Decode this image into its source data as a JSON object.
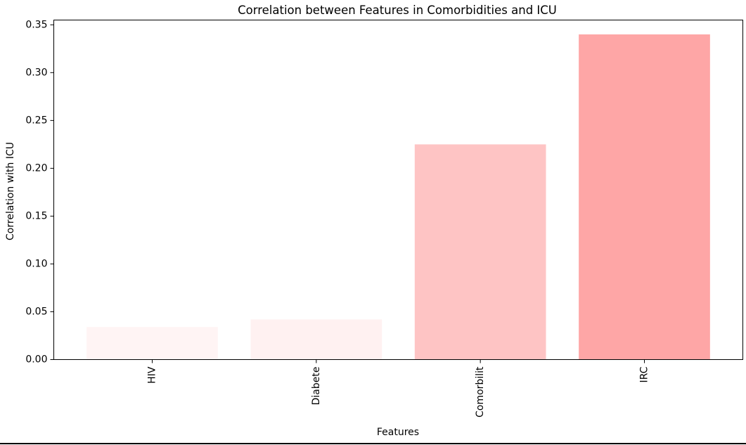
{
  "chart_data": {
    "type": "bar",
    "title": "Correlation between Features in Comorbidities and ICU",
    "xlabel": "Features",
    "ylabel": "Correlation with ICU",
    "categories": [
      "HIV",
      "Diabete",
      "Comorbilit",
      "IRC"
    ],
    "values": [
      0.034,
      0.042,
      0.225,
      0.34
    ],
    "colors": [
      "#fff4f4",
      "#fff1f1",
      "#fec4c4",
      "#fea6a6"
    ],
    "ylim": [
      0,
      0.355
    ],
    "yticks": [
      0.0,
      0.05,
      0.1,
      0.15,
      0.2,
      0.25,
      0.3,
      0.35
    ],
    "ytick_labels": [
      "0.00",
      "0.05",
      "0.10",
      "0.15",
      "0.20",
      "0.25",
      "0.30",
      "0.35"
    ],
    "xtick_rotation": -90,
    "grid": false,
    "legend": "none"
  }
}
